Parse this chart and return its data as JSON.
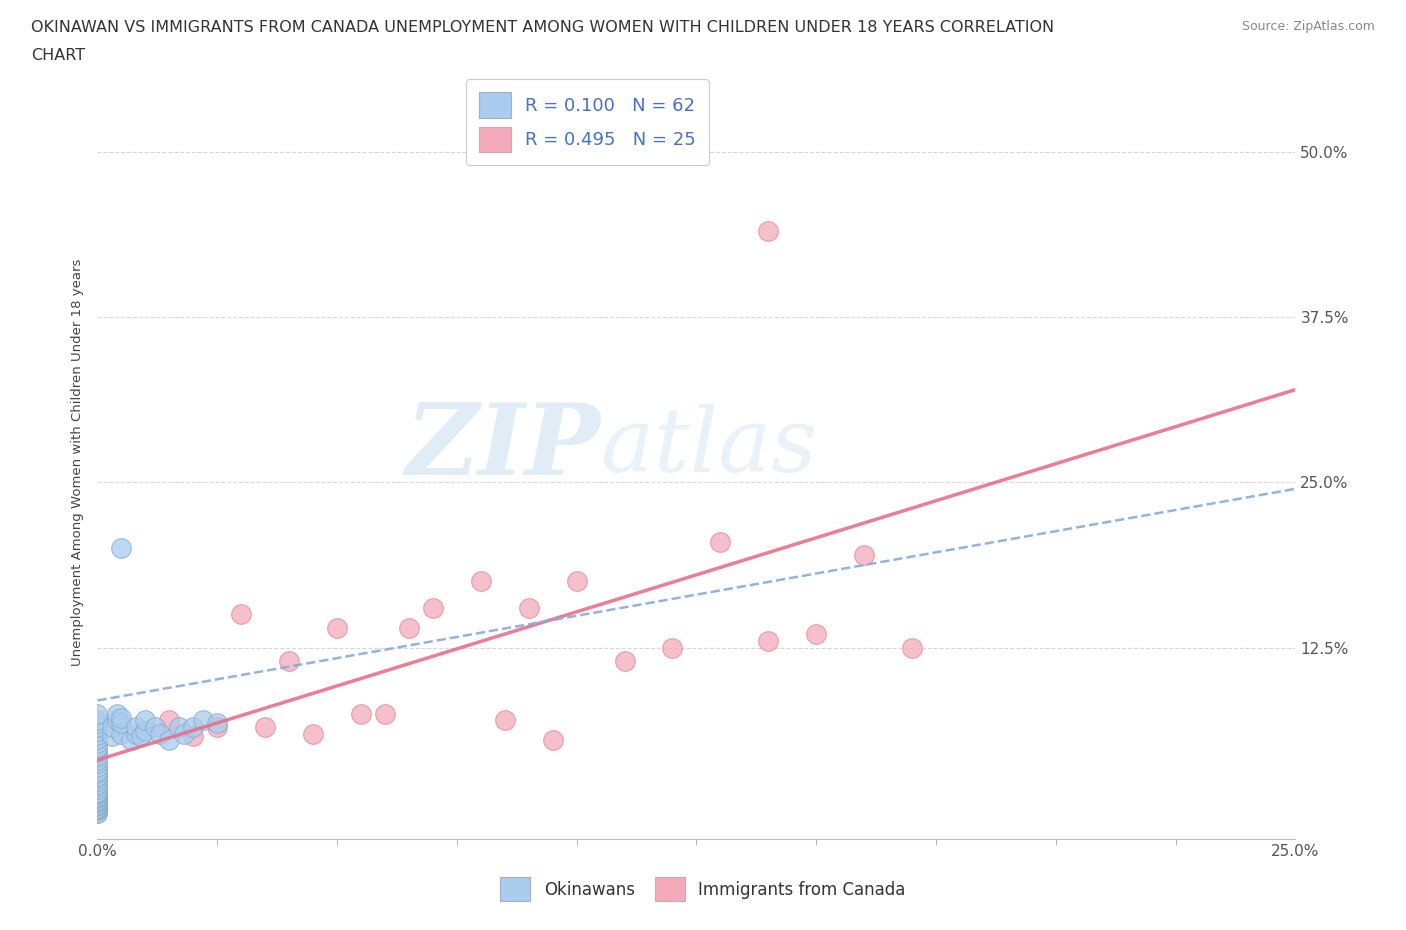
{
  "title_line1": "OKINAWAN VS IMMIGRANTS FROM CANADA UNEMPLOYMENT AMONG WOMEN WITH CHILDREN UNDER 18 YEARS CORRELATION",
  "title_line2": "CHART",
  "source": "Source: ZipAtlas.com",
  "ylabel": "Unemployment Among Women with Children Under 18 years",
  "xlim": [
    0.0,
    0.25
  ],
  "ylim": [
    -0.02,
    0.55
  ],
  "background_color": "#ffffff",
  "grid_color": "#d8d8d8",
  "okinawan_color": "#aaccee",
  "canada_color": "#f4aabb",
  "okinawan_edge": "#88aacc",
  "canada_edge": "#e08898",
  "okinawan_trend_color": "#88aadd",
  "canada_trend_color": "#e8708a",
  "watermark_color": "#ddeeff",
  "R_okinawan": 0.1,
  "N_okinawan": 62,
  "R_canada": 0.495,
  "N_canada": 25,
  "ok_x": [
    0.0,
    0.0,
    0.0,
    0.0,
    0.0,
    0.0,
    0.0,
    0.0,
    0.0,
    0.0,
    0.0,
    0.0,
    0.0,
    0.0,
    0.0,
    0.0,
    0.0,
    0.0,
    0.0,
    0.0,
    0.0,
    0.0,
    0.0,
    0.0,
    0.0,
    0.0,
    0.0,
    0.0,
    0.0,
    0.0,
    0.0,
    0.0,
    0.0,
    0.0,
    0.0,
    0.0,
    0.0,
    0.0,
    0.0,
    0.0,
    0.003,
    0.003,
    0.004,
    0.004,
    0.005,
    0.005,
    0.005,
    0.007,
    0.008,
    0.008,
    0.009,
    0.01,
    0.01,
    0.012,
    0.013,
    0.015,
    0.017,
    0.018,
    0.02,
    0.022,
    0.025,
    0.005
  ],
  "ok_y": [
    0.0,
    0.0,
    0.002,
    0.003,
    0.004,
    0.005,
    0.006,
    0.007,
    0.008,
    0.009,
    0.01,
    0.011,
    0.012,
    0.013,
    0.014,
    0.015,
    0.016,
    0.018,
    0.02,
    0.022,
    0.024,
    0.026,
    0.028,
    0.03,
    0.032,
    0.035,
    0.038,
    0.04,
    0.043,
    0.046,
    0.048,
    0.05,
    0.053,
    0.056,
    0.059,
    0.062,
    0.065,
    0.068,
    0.07,
    0.075,
    0.058,
    0.065,
    0.07,
    0.075,
    0.06,
    0.068,
    0.072,
    0.055,
    0.06,
    0.065,
    0.058,
    0.062,
    0.07,
    0.065,
    0.06,
    0.055,
    0.065,
    0.06,
    0.065,
    0.07,
    0.068,
    0.2
  ],
  "ca_x": [
    0.015,
    0.02,
    0.025,
    0.03,
    0.035,
    0.04,
    0.045,
    0.05,
    0.055,
    0.06,
    0.065,
    0.07,
    0.08,
    0.085,
    0.09,
    0.095,
    0.1,
    0.11,
    0.12,
    0.13,
    0.14,
    0.15,
    0.16,
    0.17,
    0.14
  ],
  "ca_y": [
    0.07,
    0.058,
    0.065,
    0.15,
    0.065,
    0.115,
    0.06,
    0.14,
    0.075,
    0.075,
    0.14,
    0.155,
    0.175,
    0.07,
    0.155,
    0.055,
    0.175,
    0.115,
    0.125,
    0.205,
    0.13,
    0.135,
    0.195,
    0.125,
    0.44
  ],
  "ok_trend": [
    0.0,
    0.25,
    0.085,
    0.245
  ],
  "ca_trend": [
    0.0,
    0.25,
    0.04,
    0.32
  ]
}
